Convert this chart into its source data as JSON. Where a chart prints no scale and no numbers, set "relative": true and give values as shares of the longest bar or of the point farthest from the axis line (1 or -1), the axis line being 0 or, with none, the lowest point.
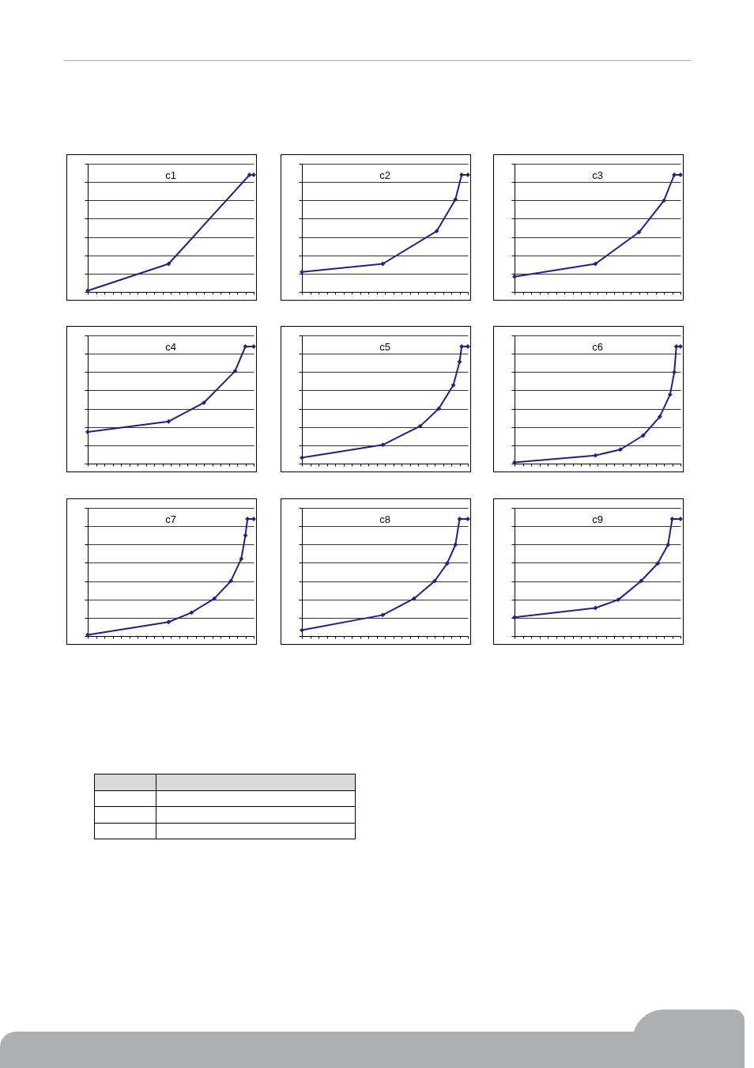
{
  "chart_data": [
    {
      "type": "line",
      "title": "c1",
      "relative": true,
      "grid": "y",
      "tick_labels": false,
      "marker": "diamond",
      "line_style": "solid",
      "categories": [
        null,
        null,
        null,
        null,
        null,
        null,
        null,
        null,
        null,
        null,
        null,
        null,
        null,
        null,
        null,
        null,
        null,
        null,
        null,
        null,
        null,
        null,
        null,
        null,
        null,
        null,
        null,
        null,
        null,
        null,
        null,
        null,
        null,
        null,
        null,
        null,
        null,
        null,
        null,
        null,
        null,
        null,
        null,
        null,
        null,
        null,
        null,
        null,
        null,
        null,
        null,
        null,
        null,
        null,
        null,
        null,
        null,
        null,
        null,
        null,
        null,
        null,
        null,
        null,
        null,
        null,
        null,
        null,
        null,
        null,
        null,
        null,
        null,
        null,
        null,
        null,
        null,
        null,
        null,
        null,
        null
      ],
      "series": [
        {
          "color": "#2e1a87",
          "values": [
            0.01,
            null,
            null,
            null,
            null,
            null,
            null,
            null,
            null,
            null,
            null,
            null,
            null,
            null,
            null,
            null,
            null,
            null,
            null,
            null,
            null,
            null,
            null,
            null,
            null,
            null,
            null,
            null,
            null,
            null,
            null,
            null,
            null,
            null,
            null,
            null,
            null,
            null,
            null,
            0.24,
            null,
            null,
            null,
            null,
            null,
            null,
            null,
            null,
            null,
            null,
            null,
            null,
            null,
            null,
            null,
            null,
            null,
            null,
            null,
            null,
            null,
            null,
            null,
            null,
            null,
            null,
            null,
            null,
            null,
            null,
            null,
            null,
            null,
            null,
            null,
            null,
            null,
            null,
            1,
            null,
            1
          ]
        }
      ]
    },
    {
      "type": "line",
      "title": "c2",
      "relative": true,
      "grid": "y",
      "tick_labels": false,
      "marker": "diamond",
      "line_style": "solid",
      "categories": [
        null,
        null,
        null,
        null,
        null,
        null,
        null,
        null,
        null,
        null,
        null,
        null,
        null,
        null,
        null,
        null,
        null,
        null,
        null,
        null,
        null,
        null,
        null,
        null,
        null,
        null,
        null,
        null,
        null,
        null,
        null,
        null,
        null,
        null,
        null,
        null,
        null,
        null,
        null,
        null,
        null,
        null,
        null,
        null,
        null,
        null,
        null,
        null,
        null,
        null,
        null,
        null,
        null,
        null,
        null,
        null,
        null,
        null,
        null,
        null,
        null,
        null,
        null,
        null,
        null,
        null,
        null,
        null,
        null,
        null,
        null,
        null,
        null,
        null,
        null,
        null,
        null,
        null,
        null,
        null,
        null
      ],
      "series": [
        {
          "color": "#2e1a87",
          "values": [
            0.17,
            null,
            null,
            null,
            null,
            null,
            null,
            null,
            null,
            null,
            null,
            null,
            null,
            null,
            null,
            null,
            null,
            null,
            null,
            null,
            null,
            null,
            null,
            null,
            null,
            null,
            null,
            null,
            null,
            null,
            null,
            null,
            null,
            null,
            null,
            null,
            null,
            null,
            null,
            0.24,
            null,
            null,
            null,
            null,
            null,
            null,
            null,
            null,
            null,
            null,
            null,
            null,
            null,
            null,
            null,
            null,
            null,
            null,
            null,
            null,
            null,
            null,
            null,
            null,
            null,
            0.52,
            null,
            null,
            null,
            null,
            null,
            null,
            null,
            null,
            0.79,
            null,
            null,
            1,
            null,
            null,
            1
          ]
        }
      ]
    },
    {
      "type": "line",
      "title": "c3",
      "relative": true,
      "grid": "y",
      "tick_labels": false,
      "marker": "diamond",
      "line_style": "solid",
      "categories": [
        null,
        null,
        null,
        null,
        null,
        null,
        null,
        null,
        null,
        null,
        null,
        null,
        null,
        null,
        null,
        null,
        null,
        null,
        null,
        null,
        null,
        null,
        null,
        null,
        null,
        null,
        null,
        null,
        null,
        null,
        null,
        null,
        null,
        null,
        null,
        null,
        null,
        null,
        null,
        null,
        null,
        null,
        null,
        null,
        null,
        null,
        null,
        null,
        null,
        null,
        null,
        null,
        null,
        null,
        null,
        null,
        null,
        null,
        null,
        null,
        null,
        null,
        null,
        null,
        null,
        null,
        null,
        null,
        null,
        null,
        null,
        null,
        null,
        null,
        null,
        null,
        null,
        null,
        null,
        null,
        null
      ],
      "series": [
        {
          "color": "#2e1a87",
          "values": [
            0.13,
            null,
            null,
            null,
            null,
            null,
            null,
            null,
            null,
            null,
            null,
            null,
            null,
            null,
            null,
            null,
            null,
            null,
            null,
            null,
            null,
            null,
            null,
            null,
            null,
            null,
            null,
            null,
            null,
            null,
            null,
            null,
            null,
            null,
            null,
            null,
            null,
            null,
            null,
            0.24,
            null,
            null,
            null,
            null,
            null,
            null,
            null,
            null,
            null,
            null,
            null,
            null,
            null,
            null,
            null,
            null,
            null,
            null,
            null,
            null,
            0.51,
            null,
            null,
            null,
            null,
            null,
            null,
            null,
            null,
            null,
            null,
            null,
            0.78,
            null,
            null,
            null,
            null,
            1,
            null,
            null,
            1
          ]
        }
      ]
    },
    {
      "type": "line",
      "title": "c4",
      "relative": true,
      "grid": "y",
      "tick_labels": false,
      "marker": "diamond",
      "line_style": "solid",
      "categories": [
        null,
        null,
        null,
        null,
        null,
        null,
        null,
        null,
        null,
        null,
        null,
        null,
        null,
        null,
        null,
        null,
        null,
        null,
        null,
        null,
        null,
        null,
        null,
        null,
        null,
        null,
        null,
        null,
        null,
        null,
        null,
        null,
        null,
        null,
        null,
        null,
        null,
        null,
        null,
        null,
        null,
        null,
        null,
        null,
        null,
        null,
        null,
        null,
        null,
        null,
        null,
        null,
        null,
        null,
        null,
        null,
        null,
        null,
        null,
        null,
        null,
        null,
        null,
        null,
        null,
        null,
        null,
        null,
        null,
        null,
        null,
        null,
        null,
        null,
        null,
        null,
        null,
        null,
        null,
        null,
        null
      ],
      "series": [
        {
          "color": "#2e1a87",
          "values": [
            0.27,
            null,
            null,
            null,
            null,
            null,
            null,
            null,
            null,
            null,
            null,
            null,
            null,
            null,
            null,
            null,
            null,
            null,
            null,
            null,
            null,
            null,
            null,
            null,
            null,
            null,
            null,
            null,
            null,
            null,
            null,
            null,
            null,
            null,
            null,
            null,
            null,
            null,
            null,
            0.36,
            null,
            null,
            null,
            null,
            null,
            null,
            null,
            null,
            null,
            null,
            null,
            null,
            null,
            null,
            null,
            null,
            0.52,
            null,
            null,
            null,
            null,
            null,
            null,
            null,
            null,
            null,
            null,
            null,
            null,
            null,
            null,
            0.79,
            null,
            null,
            null,
            null,
            1,
            null,
            null,
            null,
            1
          ]
        }
      ]
    },
    {
      "type": "line",
      "title": "c5",
      "relative": true,
      "grid": "y",
      "tick_labels": false,
      "marker": "diamond",
      "line_style": "solid",
      "categories": [
        null,
        null,
        null,
        null,
        null,
        null,
        null,
        null,
        null,
        null,
        null,
        null,
        null,
        null,
        null,
        null,
        null,
        null,
        null,
        null,
        null,
        null,
        null,
        null,
        null,
        null,
        null,
        null,
        null,
        null,
        null,
        null,
        null,
        null,
        null,
        null,
        null,
        null,
        null,
        null,
        null,
        null,
        null,
        null,
        null,
        null,
        null,
        null,
        null,
        null,
        null,
        null,
        null,
        null,
        null,
        null,
        null,
        null,
        null,
        null,
        null,
        null,
        null,
        null,
        null,
        null,
        null,
        null,
        null,
        null,
        null,
        null,
        null,
        null,
        null,
        null,
        null,
        null,
        null,
        null,
        null
      ],
      "series": [
        {
          "color": "#2e1a87",
          "values": [
            0.05,
            null,
            null,
            null,
            null,
            null,
            null,
            null,
            null,
            null,
            null,
            null,
            null,
            null,
            null,
            null,
            null,
            null,
            null,
            null,
            null,
            null,
            null,
            null,
            null,
            null,
            null,
            null,
            null,
            null,
            null,
            null,
            null,
            null,
            null,
            null,
            null,
            null,
            null,
            0.16,
            null,
            null,
            null,
            null,
            null,
            null,
            null,
            null,
            null,
            null,
            null,
            null,
            null,
            null,
            null,
            null,
            null,
            0.32,
            null,
            null,
            null,
            null,
            null,
            null,
            null,
            null,
            0.47,
            null,
            null,
            null,
            null,
            null,
            null,
            0.67,
            null,
            null,
            0.87,
            1,
            null,
            null,
            1
          ]
        }
      ]
    },
    {
      "type": "line",
      "title": "c6",
      "relative": true,
      "grid": "y",
      "tick_labels": false,
      "marker": "diamond",
      "line_style": "solid",
      "categories": [
        null,
        null,
        null,
        null,
        null,
        null,
        null,
        null,
        null,
        null,
        null,
        null,
        null,
        null,
        null,
        null,
        null,
        null,
        null,
        null,
        null,
        null,
        null,
        null,
        null,
        null,
        null,
        null,
        null,
        null,
        null,
        null,
        null,
        null,
        null,
        null,
        null,
        null,
        null,
        null,
        null,
        null,
        null,
        null,
        null,
        null,
        null,
        null,
        null,
        null,
        null,
        null,
        null,
        null,
        null,
        null,
        null,
        null,
        null,
        null,
        null,
        null,
        null,
        null,
        null,
        null,
        null,
        null,
        null,
        null,
        null,
        null,
        null,
        null,
        null,
        null,
        null,
        null,
        null,
        null,
        null
      ],
      "series": [
        {
          "color": "#2e1a87",
          "values": [
            0.01,
            null,
            null,
            null,
            null,
            null,
            null,
            null,
            null,
            null,
            null,
            null,
            null,
            null,
            null,
            null,
            null,
            null,
            null,
            null,
            null,
            null,
            null,
            null,
            null,
            null,
            null,
            null,
            null,
            null,
            null,
            null,
            null,
            null,
            null,
            null,
            null,
            null,
            null,
            0.07,
            null,
            null,
            null,
            null,
            null,
            null,
            null,
            null,
            null,
            null,
            null,
            0.12,
            null,
            null,
            null,
            null,
            null,
            null,
            null,
            null,
            null,
            null,
            0.24,
            null,
            null,
            null,
            null,
            null,
            null,
            null,
            0.4,
            null,
            null,
            null,
            null,
            0.59,
            null,
            0.78,
            1,
            null,
            1
          ]
        }
      ]
    },
    {
      "type": "line",
      "title": "c7",
      "relative": true,
      "grid": "y",
      "tick_labels": false,
      "marker": "diamond",
      "line_style": "solid",
      "categories": [
        null,
        null,
        null,
        null,
        null,
        null,
        null,
        null,
        null,
        null,
        null,
        null,
        null,
        null,
        null,
        null,
        null,
        null,
        null,
        null,
        null,
        null,
        null,
        null,
        null,
        null,
        null,
        null,
        null,
        null,
        null,
        null,
        null,
        null,
        null,
        null,
        null,
        null,
        null,
        null,
        null,
        null,
        null,
        null,
        null,
        null,
        null,
        null,
        null,
        null,
        null,
        null,
        null,
        null,
        null,
        null,
        null,
        null,
        null,
        null,
        null,
        null,
        null,
        null,
        null,
        null,
        null,
        null,
        null,
        null,
        null,
        null,
        null,
        null,
        null,
        null,
        null,
        null,
        null,
        null,
        null
      ],
      "series": [
        {
          "color": "#2e1a87",
          "values": [
            0.01,
            null,
            null,
            null,
            null,
            null,
            null,
            null,
            null,
            null,
            null,
            null,
            null,
            null,
            null,
            null,
            null,
            null,
            null,
            null,
            null,
            null,
            null,
            null,
            null,
            null,
            null,
            null,
            null,
            null,
            null,
            null,
            null,
            null,
            null,
            null,
            null,
            null,
            null,
            0.12,
            null,
            null,
            null,
            null,
            null,
            null,
            null,
            null,
            null,
            null,
            0.2,
            null,
            null,
            null,
            null,
            null,
            null,
            null,
            null,
            null,
            null,
            0.32,
            null,
            null,
            null,
            null,
            null,
            null,
            null,
            0.47,
            null,
            null,
            null,
            null,
            0.66,
            null,
            0.86,
            1,
            null,
            null,
            1
          ]
        }
      ]
    },
    {
      "type": "line",
      "title": "c8",
      "relative": true,
      "grid": "y",
      "tick_labels": false,
      "marker": "diamond",
      "line_style": "solid",
      "categories": [
        null,
        null,
        null,
        null,
        null,
        null,
        null,
        null,
        null,
        null,
        null,
        null,
        null,
        null,
        null,
        null,
        null,
        null,
        null,
        null,
        null,
        null,
        null,
        null,
        null,
        null,
        null,
        null,
        null,
        null,
        null,
        null,
        null,
        null,
        null,
        null,
        null,
        null,
        null,
        null,
        null,
        null,
        null,
        null,
        null,
        null,
        null,
        null,
        null,
        null,
        null,
        null,
        null,
        null,
        null,
        null,
        null,
        null,
        null,
        null,
        null,
        null,
        null,
        null,
        null,
        null,
        null,
        null,
        null,
        null,
        null,
        null,
        null,
        null,
        null,
        null,
        null,
        null,
        null,
        null,
        null
      ],
      "series": [
        {
          "color": "#2e1a87",
          "values": [
            0.05,
            null,
            null,
            null,
            null,
            null,
            null,
            null,
            null,
            null,
            null,
            null,
            null,
            null,
            null,
            null,
            null,
            null,
            null,
            null,
            null,
            null,
            null,
            null,
            null,
            null,
            null,
            null,
            null,
            null,
            null,
            null,
            null,
            null,
            null,
            null,
            null,
            null,
            null,
            0.18,
            null,
            null,
            null,
            null,
            null,
            null,
            null,
            null,
            null,
            null,
            null,
            null,
            null,
            null,
            0.32,
            null,
            null,
            null,
            null,
            null,
            null,
            null,
            null,
            null,
            0.47,
            null,
            null,
            null,
            null,
            null,
            0.62,
            null,
            null,
            null,
            0.78,
            null,
            1,
            null,
            null,
            null,
            1
          ]
        }
      ]
    },
    {
      "type": "line",
      "title": "c9",
      "relative": true,
      "grid": "y",
      "tick_labels": false,
      "marker": "diamond",
      "line_style": "solid",
      "categories": [
        null,
        null,
        null,
        null,
        null,
        null,
        null,
        null,
        null,
        null,
        null,
        null,
        null,
        null,
        null,
        null,
        null,
        null,
        null,
        null,
        null,
        null,
        null,
        null,
        null,
        null,
        null,
        null,
        null,
        null,
        null,
        null,
        null,
        null,
        null,
        null,
        null,
        null,
        null,
        null,
        null,
        null,
        null,
        null,
        null,
        null,
        null,
        null,
        null,
        null,
        null,
        null,
        null,
        null,
        null,
        null,
        null,
        null,
        null,
        null,
        null,
        null,
        null,
        null,
        null,
        null,
        null,
        null,
        null,
        null,
        null,
        null,
        null,
        null,
        null,
        null,
        null,
        null,
        null,
        null,
        null
      ],
      "series": [
        {
          "color": "#2e1a87",
          "values": [
            0.16,
            null,
            null,
            null,
            null,
            null,
            null,
            null,
            null,
            null,
            null,
            null,
            null,
            null,
            null,
            null,
            null,
            null,
            null,
            null,
            null,
            null,
            null,
            null,
            null,
            null,
            null,
            null,
            null,
            null,
            null,
            null,
            null,
            null,
            null,
            null,
            null,
            null,
            null,
            0.24,
            null,
            null,
            null,
            null,
            null,
            null,
            null,
            null,
            null,
            null,
            0.31,
            null,
            null,
            null,
            null,
            null,
            null,
            null,
            null,
            null,
            null,
            0.47,
            null,
            null,
            null,
            null,
            null,
            null,
            null,
            0.62,
            null,
            null,
            null,
            null,
            0.78,
            null,
            1,
            null,
            null,
            null,
            1
          ]
        }
      ]
    }
  ]
}
